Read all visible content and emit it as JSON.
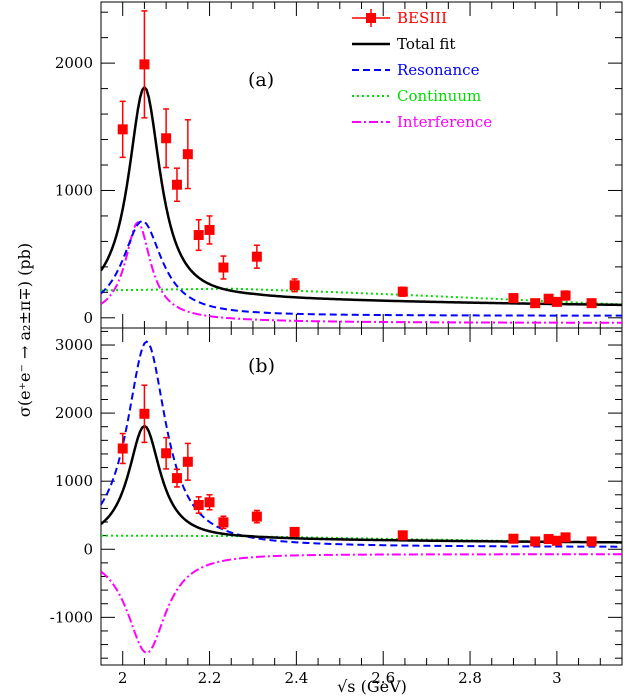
{
  "chart_data": [
    {
      "panel": "(a)",
      "type": "scatter",
      "xlim": [
        1.95,
        3.15
      ],
      "ylim": [
        -80,
        2480
      ],
      "yticks": [
        0,
        1000,
        2000
      ],
      "xticks": [
        2.0,
        2.2,
        2.4,
        2.6,
        2.8,
        3.0
      ],
      "xtick_labels": [
        "2",
        "2.2",
        "2.4",
        "2.6",
        "2.8",
        "3"
      ],
      "points": [
        {
          "x": 2.0,
          "y": 1480,
          "yerr": 220
        },
        {
          "x": 2.05,
          "y": 1990,
          "yerr": 420
        },
        {
          "x": 2.1,
          "y": 1410,
          "yerr": 230
        },
        {
          "x": 2.125,
          "y": 1045,
          "yerr": 130
        },
        {
          "x": 2.15,
          "y": 1285,
          "yerr": 270
        },
        {
          "x": 2.175,
          "y": 650,
          "yerr": 120
        },
        {
          "x": 2.2,
          "y": 690,
          "yerr": 110
        },
        {
          "x": 2.232,
          "y": 395,
          "yerr": 90
        },
        {
          "x": 2.309,
          "y": 480,
          "yerr": 90
        },
        {
          "x": 2.396,
          "y": 255,
          "yerr": 50
        },
        {
          "x": 2.645,
          "y": 205,
          "yerr": 35
        },
        {
          "x": 2.9,
          "y": 155,
          "yerr": 25
        },
        {
          "x": 2.95,
          "y": 115,
          "yerr": 25
        },
        {
          "x": 2.981,
          "y": 150,
          "yerr": 30
        },
        {
          "x": 3.0,
          "y": 125,
          "yerr": 30
        },
        {
          "x": 3.02,
          "y": 175,
          "yerr": 35
        },
        {
          "x": 3.08,
          "y": 115,
          "yerr": 20
        }
      ],
      "curves": {
        "total": {
          "peak_x": 2.05,
          "peak_y": 1730,
          "width": 0.045,
          "tail": 70
        },
        "resonance": {
          "peak_x": 2.045,
          "peak_y": 760,
          "width": 0.055,
          "tail": 15
        },
        "continuum": {
          "start": 215,
          "mid": 240,
          "end": 105
        },
        "interference": {
          "peak_x": 2.035,
          "peak_y": 750,
          "width": 0.035,
          "floor": -40
        }
      }
    },
    {
      "panel": "(b)",
      "type": "scatter",
      "xlim": [
        1.95,
        3.15
      ],
      "ylim": [
        -1700,
        3250
      ],
      "yticks": [
        -1000,
        0,
        1000,
        2000,
        3000
      ],
      "xticks": [
        2.0,
        2.2,
        2.4,
        2.6,
        2.8,
        3.0
      ],
      "xtick_labels": [
        "2",
        "2.2",
        "2.4",
        "2.6",
        "2.8",
        "3"
      ],
      "points": [
        {
          "x": 2.0,
          "y": 1480,
          "yerr": 220
        },
        {
          "x": 2.05,
          "y": 1990,
          "yerr": 420
        },
        {
          "x": 2.1,
          "y": 1410,
          "yerr": 230
        },
        {
          "x": 2.125,
          "y": 1045,
          "yerr": 130
        },
        {
          "x": 2.15,
          "y": 1285,
          "yerr": 270
        },
        {
          "x": 2.175,
          "y": 650,
          "yerr": 120
        },
        {
          "x": 2.2,
          "y": 690,
          "yerr": 110
        },
        {
          "x": 2.232,
          "y": 395,
          "yerr": 90
        },
        {
          "x": 2.309,
          "y": 480,
          "yerr": 90
        },
        {
          "x": 2.396,
          "y": 255,
          "yerr": 50
        },
        {
          "x": 2.645,
          "y": 205,
          "yerr": 35
        },
        {
          "x": 2.9,
          "y": 155,
          "yerr": 25
        },
        {
          "x": 2.95,
          "y": 115,
          "yerr": 25
        },
        {
          "x": 2.981,
          "y": 150,
          "yerr": 30
        },
        {
          "x": 3.0,
          "y": 125,
          "yerr": 30
        },
        {
          "x": 3.02,
          "y": 175,
          "yerr": 35
        },
        {
          "x": 3.08,
          "y": 115,
          "yerr": 20
        }
      ],
      "curves": {
        "total": {
          "peak_x": 2.05,
          "peak_y": 1730,
          "width": 0.045,
          "tail": 70
        },
        "resonance": {
          "peak_x": 2.055,
          "peak_y": 3050,
          "width": 0.055,
          "tail": 30
        },
        "continuum": {
          "start": 200,
          "mid": 190,
          "end": 95
        },
        "interference": {
          "peak_x": 2.055,
          "peak_y": -1520,
          "width": 0.055,
          "floor": -70
        }
      }
    }
  ],
  "legend": [
    {
      "key": "data",
      "label": "BESIII",
      "color": "#ff0000",
      "style": "marker"
    },
    {
      "key": "total",
      "label": "Total fit",
      "color": "#000000",
      "style": "solid"
    },
    {
      "key": "resonance",
      "label": "Resonance",
      "color": "#0000ff",
      "style": "dashed"
    },
    {
      "key": "continuum",
      "label": "Continuum",
      "color": "#00dd00",
      "style": "dotted"
    },
    {
      "key": "interference",
      "label": "Interference",
      "color": "#ff00ff",
      "style": "dashdot"
    }
  ],
  "axes": {
    "ylabel": "σ(e⁺e⁻ → a₂±π∓) (pb)",
    "xlabel": "√s (GeV)"
  }
}
